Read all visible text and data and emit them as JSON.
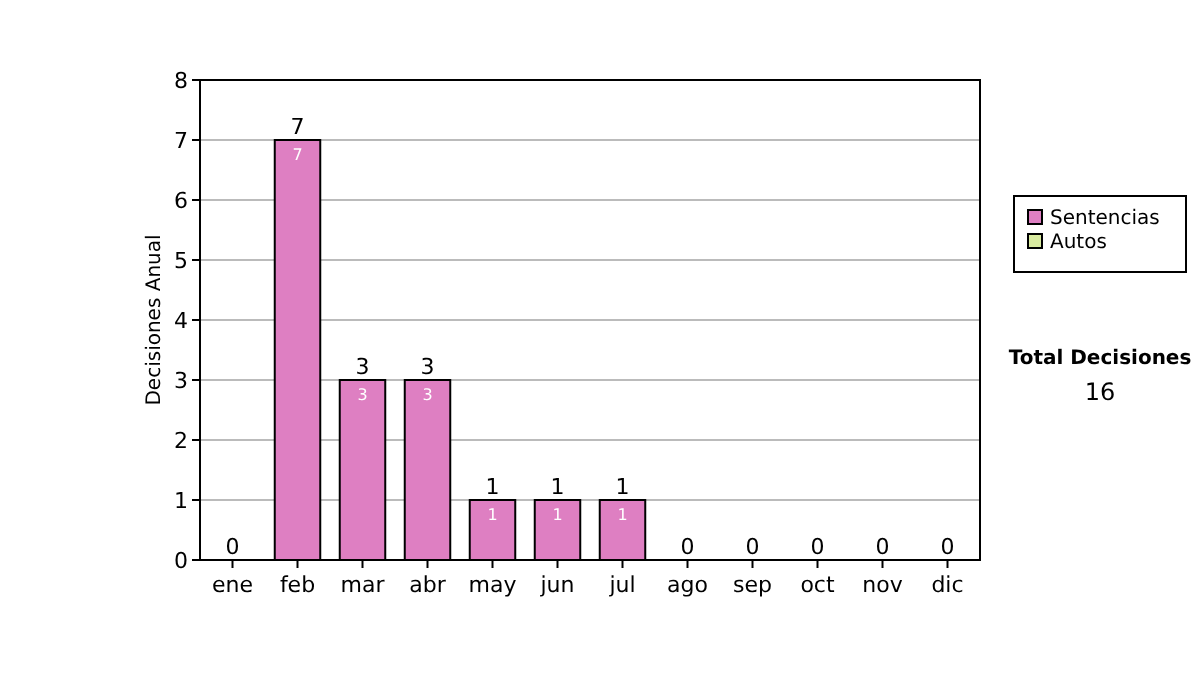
{
  "chart_data": {
    "type": "bar",
    "stacked": true,
    "ylabel": "Decisiones Anual",
    "categories": [
      "ene",
      "feb",
      "mar",
      "abr",
      "may",
      "jun",
      "jul",
      "ago",
      "sep",
      "oct",
      "nov",
      "dic"
    ],
    "series": [
      {
        "name": "Sentencias",
        "color": "#de7fc2",
        "values": [
          0,
          7,
          3,
          3,
          1,
          1,
          1,
          0,
          0,
          0,
          0,
          0
        ],
        "value_labels": [
          null,
          "7",
          "3",
          "3",
          "1",
          "1",
          "1",
          null,
          null,
          null,
          null,
          null
        ]
      },
      {
        "name": "Autos",
        "color": "#d9eba0",
        "values": [
          0,
          0,
          0,
          0,
          0,
          0,
          0,
          0,
          0,
          0,
          0,
          0
        ]
      }
    ],
    "totals": [
      "0",
      "7",
      "3",
      "3",
      "1",
      "1",
      "1",
      "0",
      "0",
      "0",
      "0",
      "0"
    ],
    "ylim": [
      0,
      8
    ],
    "yticks": [
      0,
      1,
      2,
      3,
      4,
      5,
      6,
      7,
      8
    ],
    "grid": "y",
    "legend": "right",
    "annotations": [
      "Total Decisiones",
      "16"
    ]
  }
}
